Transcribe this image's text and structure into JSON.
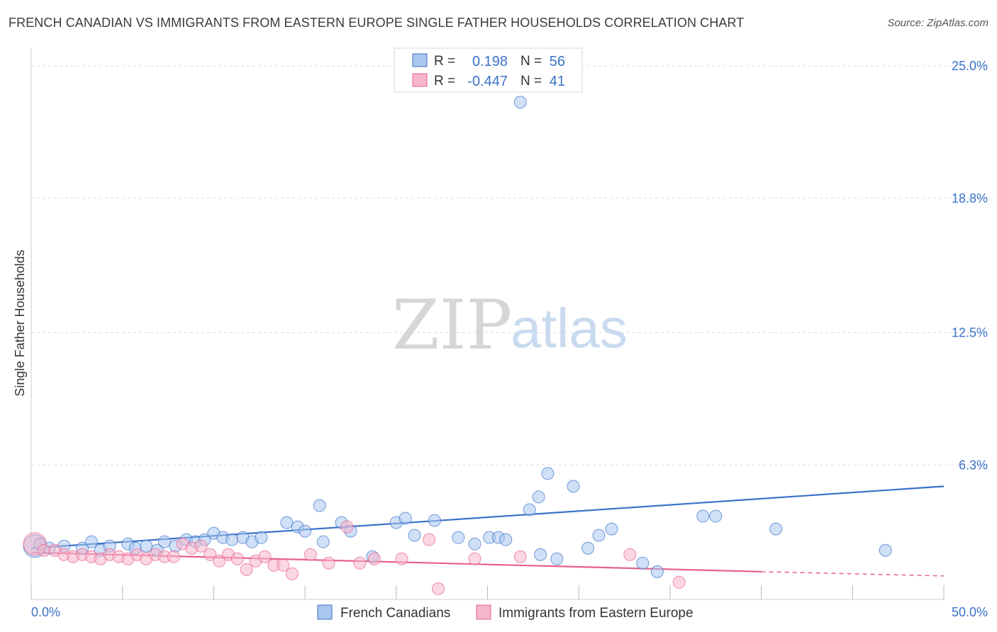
{
  "title": "FRENCH CANADIAN VS IMMIGRANTS FROM EASTERN EUROPE SINGLE FATHER HOUSEHOLDS CORRELATION CHART",
  "source": "Source: ZipAtlas.com",
  "watermark": {
    "zip": "ZIP",
    "atlas": "atlas"
  },
  "colors": {
    "blue": "#3b72c8",
    "blue_fill": "#a9c6ee",
    "pink": "#e8608f",
    "pink_fill": "#f5b6cb",
    "grid": "#dddddd"
  },
  "legend": {
    "r_label": "R =",
    "n_label": "N =",
    "series": [
      {
        "r": "0.198",
        "n": "56"
      },
      {
        "r": "-0.447",
        "n": "41"
      }
    ]
  },
  "chart_data": {
    "type": "scatter",
    "xlabel": "",
    "ylabel": "Single Father Households",
    "xlim": [
      0,
      50
    ],
    "ylim": [
      0,
      25.5
    ],
    "x_tick_labels": [
      "0.0%",
      "50.0%"
    ],
    "y_ticks": [
      6.3,
      12.5,
      18.8,
      25.0
    ],
    "y_tick_labels": [
      "6.3%",
      "12.5%",
      "18.8%",
      "25.0%"
    ],
    "grid": true,
    "series": [
      {
        "name": "French Canadians",
        "color": "#3b72c8",
        "trend": {
          "x": [
            0,
            50
          ],
          "y": [
            2.4,
            5.3
          ]
        },
        "points": [
          [
            0.2,
            2.5
          ],
          [
            0.5,
            2.6
          ],
          [
            1,
            2.4
          ],
          [
            1.8,
            2.5
          ],
          [
            2.8,
            2.4
          ],
          [
            3.3,
            2.7
          ],
          [
            3.8,
            2.3
          ],
          [
            4.3,
            2.5
          ],
          [
            5.3,
            2.6
          ],
          [
            5.7,
            2.4
          ],
          [
            6.3,
            2.5
          ],
          [
            6.9,
            2.3
          ],
          [
            7.3,
            2.7
          ],
          [
            7.9,
            2.5
          ],
          [
            8.5,
            2.8
          ],
          [
            9.0,
            2.7
          ],
          [
            9.5,
            2.8
          ],
          [
            10.0,
            3.1
          ],
          [
            10.5,
            2.9
          ],
          [
            11.0,
            2.8
          ],
          [
            11.6,
            2.9
          ],
          [
            12.1,
            2.7
          ],
          [
            12.6,
            2.9
          ],
          [
            14.0,
            3.6
          ],
          [
            14.6,
            3.4
          ],
          [
            15.0,
            3.2
          ],
          [
            15.8,
            4.4
          ],
          [
            16.0,
            2.7
          ],
          [
            17.0,
            3.6
          ],
          [
            17.5,
            3.2
          ],
          [
            18.7,
            2.0
          ],
          [
            20.0,
            3.6
          ],
          [
            20.5,
            3.8
          ],
          [
            21.0,
            3.0
          ],
          [
            22.1,
            3.7
          ],
          [
            23.4,
            2.9
          ],
          [
            24.3,
            2.6
          ],
          [
            25.1,
            2.9
          ],
          [
            25.6,
            2.9
          ],
          [
            26.0,
            2.8
          ],
          [
            27.3,
            4.2
          ],
          [
            27.8,
            4.8
          ],
          [
            28.3,
            5.9
          ],
          [
            28.8,
            1.9
          ],
          [
            29.7,
            5.3
          ],
          [
            30.5,
            2.4
          ],
          [
            31.1,
            3.0
          ],
          [
            31.8,
            3.3
          ],
          [
            33.5,
            1.7
          ],
          [
            34.3,
            1.3
          ],
          [
            26.8,
            23.3
          ],
          [
            27.9,
            2.1
          ],
          [
            36.8,
            3.9
          ],
          [
            37.5,
            3.9
          ],
          [
            40.8,
            3.3
          ],
          [
            46.8,
            2.3
          ]
        ]
      },
      {
        "name": "Immigrants from Eastern Europe",
        "color": "#e8608f",
        "trend": {
          "x": [
            0,
            40
          ],
          "y": [
            2.2,
            1.3
          ]
        },
        "trend_dashed": {
          "x": [
            40,
            50
          ],
          "y": [
            1.3,
            1.1
          ]
        },
        "points": [
          [
            0.2,
            2.6
          ],
          [
            0.7,
            2.3
          ],
          [
            1.3,
            2.3
          ],
          [
            1.8,
            2.1
          ],
          [
            2.3,
            2.0
          ],
          [
            2.8,
            2.1
          ],
          [
            3.3,
            2.0
          ],
          [
            3.8,
            1.9
          ],
          [
            4.3,
            2.1
          ],
          [
            4.8,
            2.0
          ],
          [
            5.3,
            1.9
          ],
          [
            5.8,
            2.1
          ],
          [
            6.3,
            1.9
          ],
          [
            6.8,
            2.1
          ],
          [
            7.3,
            2.0
          ],
          [
            7.8,
            2.0
          ],
          [
            8.3,
            2.6
          ],
          [
            8.8,
            2.4
          ],
          [
            9.3,
            2.5
          ],
          [
            9.8,
            2.1
          ],
          [
            10.3,
            1.8
          ],
          [
            10.8,
            2.1
          ],
          [
            11.3,
            1.9
          ],
          [
            11.8,
            1.4
          ],
          [
            12.3,
            1.8
          ],
          [
            12.8,
            2.0
          ],
          [
            13.3,
            1.6
          ],
          [
            13.8,
            1.6
          ],
          [
            14.3,
            1.2
          ],
          [
            15.3,
            2.1
          ],
          [
            16.3,
            1.7
          ],
          [
            17.3,
            3.4
          ],
          [
            18.0,
            1.7
          ],
          [
            18.8,
            1.9
          ],
          [
            20.3,
            1.9
          ],
          [
            21.8,
            2.8
          ],
          [
            22.3,
            0.5
          ],
          [
            24.3,
            1.9
          ],
          [
            26.8,
            2.0
          ],
          [
            32.8,
            2.1
          ],
          [
            35.5,
            0.8
          ]
        ]
      }
    ]
  }
}
